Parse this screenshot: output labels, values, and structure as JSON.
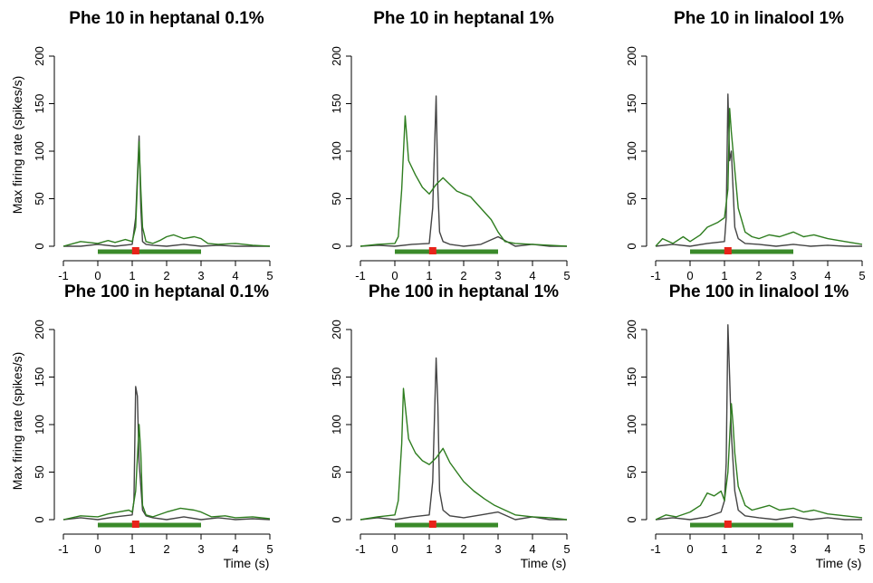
{
  "figure": {
    "ylabel": "Max firing rate (spikes/s)",
    "xlabel": "Time (s)"
  },
  "colors": {
    "green": "#2e7d1f",
    "dark": "#444444",
    "stim_bar": "#3a8a2a",
    "marker": "#e8231a"
  },
  "chart_data": [
    {
      "type": "line",
      "title": "Phe 10 in heptanal 0.1%",
      "xlim": [
        -1,
        5
      ],
      "ylim": [
        0,
        200
      ],
      "xticks": [
        "-1",
        "0",
        "1",
        "2",
        "3",
        "4",
        "5"
      ],
      "yticks": [
        "0",
        "50",
        "100",
        "150",
        "200"
      ],
      "stimulus": [
        0,
        3
      ],
      "marker_x": 1.1,
      "series": [
        {
          "name": "dark",
          "x": [
            -1,
            -0.5,
            0,
            0.5,
            1.0,
            1.1,
            1.2,
            1.25,
            1.3,
            1.4,
            1.6,
            2,
            2.5,
            3,
            3.5,
            4,
            4.5,
            5
          ],
          "y": [
            0,
            0,
            2,
            0,
            2,
            30,
            116,
            40,
            5,
            2,
            1,
            0,
            2,
            0,
            1,
            0,
            0,
            0
          ]
        },
        {
          "name": "green",
          "x": [
            -1,
            -0.8,
            -0.5,
            0,
            0.3,
            0.5,
            0.8,
            1.0,
            1.1,
            1.2,
            1.25,
            1.3,
            1.4,
            1.6,
            1.8,
            2.0,
            2.2,
            2.5,
            2.8,
            3.0,
            3.2,
            3.5,
            4,
            4.5,
            5
          ],
          "y": [
            0,
            2,
            5,
            3,
            6,
            4,
            7,
            5,
            20,
            110,
            60,
            20,
            5,
            3,
            6,
            10,
            12,
            8,
            10,
            8,
            3,
            2,
            3,
            1,
            0
          ]
        }
      ]
    },
    {
      "type": "line",
      "title": "Phe 10 in heptanal 1%",
      "xlim": [
        -1,
        5
      ],
      "ylim": [
        0,
        200
      ],
      "xticks": [
        "-1",
        "0",
        "1",
        "2",
        "3",
        "4",
        "5"
      ],
      "yticks": [
        "0",
        "50",
        "100",
        "150",
        "200"
      ],
      "stimulus": [
        0,
        3
      ],
      "marker_x": 1.1,
      "series": [
        {
          "name": "dark",
          "x": [
            -1,
            -0.5,
            0,
            0.5,
            1.0,
            1.1,
            1.2,
            1.25,
            1.3,
            1.4,
            1.6,
            2,
            2.5,
            3,
            3.5,
            4,
            4.5,
            5
          ],
          "y": [
            0,
            1,
            0,
            2,
            3,
            40,
            158,
            60,
            15,
            5,
            2,
            0,
            2,
            10,
            0,
            2,
            0,
            0
          ]
        },
        {
          "name": "green",
          "x": [
            -1,
            -0.5,
            0,
            0.1,
            0.2,
            0.3,
            0.4,
            0.6,
            0.8,
            1.0,
            1.2,
            1.4,
            1.6,
            1.8,
            2.0,
            2.2,
            2.5,
            2.8,
            3.0,
            3.2,
            3.5,
            4,
            4.5,
            5
          ],
          "y": [
            0,
            2,
            3,
            10,
            60,
            137,
            90,
            75,
            62,
            55,
            65,
            72,
            65,
            58,
            55,
            52,
            40,
            28,
            15,
            5,
            3,
            2,
            1,
            0
          ]
        }
      ]
    },
    {
      "type": "line",
      "title": "Phe 10 in linalool 1%",
      "xlim": [
        -1,
        5
      ],
      "ylim": [
        0,
        200
      ],
      "xticks": [
        "-1",
        "0",
        "1",
        "2",
        "3",
        "4",
        "5"
      ],
      "yticks": [
        "0",
        "50",
        "100",
        "150",
        "200"
      ],
      "stimulus": [
        0,
        3
      ],
      "marker_x": 1.1,
      "series": [
        {
          "name": "dark",
          "x": [
            -1,
            -0.5,
            0,
            0.5,
            1.0,
            1.05,
            1.1,
            1.15,
            1.2,
            1.25,
            1.3,
            1.4,
            1.6,
            2,
            2.5,
            3,
            3.5,
            4,
            4.5,
            5
          ],
          "y": [
            0,
            2,
            0,
            3,
            5,
            30,
            160,
            90,
            100,
            60,
            20,
            8,
            3,
            2,
            0,
            2,
            0,
            1,
            0,
            0
          ]
        },
        {
          "name": "green",
          "x": [
            -1,
            -0.8,
            -0.5,
            -0.2,
            0,
            0.3,
            0.5,
            0.8,
            1.0,
            1.1,
            1.15,
            1.2,
            1.3,
            1.4,
            1.6,
            1.8,
            2.0,
            2.3,
            2.6,
            3.0,
            3.3,
            3.6,
            4,
            4.5,
            5
          ],
          "y": [
            0,
            8,
            3,
            10,
            5,
            12,
            20,
            25,
            30,
            60,
            145,
            120,
            80,
            40,
            15,
            10,
            8,
            12,
            10,
            15,
            10,
            12,
            8,
            5,
            2
          ]
        }
      ]
    },
    {
      "type": "line",
      "title": "Phe 100 in heptanal 0.1%",
      "xlim": [
        -1,
        5
      ],
      "ylim": [
        0,
        200
      ],
      "xticks": [
        "-1",
        "0",
        "1",
        "2",
        "3",
        "4",
        "5"
      ],
      "yticks": [
        "0",
        "50",
        "100",
        "150",
        "200"
      ],
      "stimulus": [
        0,
        3
      ],
      "marker_x": 1.1,
      "series": [
        {
          "name": "dark",
          "x": [
            -1,
            -0.5,
            0,
            0.5,
            1.0,
            1.05,
            1.1,
            1.15,
            1.2,
            1.3,
            1.4,
            1.6,
            2,
            2.5,
            3,
            3.5,
            4,
            4.5,
            5
          ],
          "y": [
            0,
            2,
            0,
            3,
            5,
            20,
            140,
            130,
            60,
            10,
            4,
            2,
            0,
            3,
            0,
            2,
            0,
            1,
            0
          ]
        },
        {
          "name": "green",
          "x": [
            -1,
            -0.5,
            0,
            0.3,
            0.6,
            0.9,
            1.0,
            1.1,
            1.2,
            1.25,
            1.3,
            1.4,
            1.6,
            2.0,
            2.4,
            2.8,
            3.0,
            3.3,
            3.7,
            4,
            4.5,
            5
          ],
          "y": [
            0,
            4,
            3,
            6,
            8,
            10,
            8,
            30,
            100,
            70,
            15,
            5,
            3,
            8,
            12,
            10,
            8,
            3,
            4,
            2,
            3,
            1
          ]
        }
      ]
    },
    {
      "type": "line",
      "title": "Phe 100 in heptanal 1%",
      "xlim": [
        -1,
        5
      ],
      "ylim": [
        0,
        200
      ],
      "xticks": [
        "-1",
        "0",
        "1",
        "2",
        "3",
        "4",
        "5"
      ],
      "yticks": [
        "0",
        "50",
        "100",
        "150",
        "200"
      ],
      "stimulus": [
        0,
        3
      ],
      "marker_x": 1.1,
      "series": [
        {
          "name": "dark",
          "x": [
            -1,
            -0.5,
            0,
            0.5,
            1.0,
            1.1,
            1.2,
            1.25,
            1.3,
            1.4,
            1.6,
            2,
            2.5,
            3,
            3.5,
            4,
            4.5,
            5
          ],
          "y": [
            0,
            2,
            0,
            3,
            5,
            40,
            170,
            120,
            30,
            10,
            4,
            2,
            5,
            8,
            0,
            3,
            0,
            0
          ]
        },
        {
          "name": "green",
          "x": [
            -1,
            -0.5,
            0,
            0.1,
            0.2,
            0.25,
            0.3,
            0.4,
            0.6,
            0.8,
            1.0,
            1.2,
            1.4,
            1.6,
            1.8,
            2.0,
            2.3,
            2.6,
            2.9,
            3.2,
            3.5,
            4,
            4.5,
            5
          ],
          "y": [
            0,
            3,
            5,
            20,
            80,
            138,
            120,
            85,
            70,
            62,
            58,
            65,
            75,
            60,
            50,
            40,
            30,
            22,
            15,
            10,
            5,
            3,
            2,
            0
          ]
        }
      ]
    },
    {
      "type": "line",
      "title": "Phe 100 in linalool 1%",
      "xlim": [
        -1,
        5
      ],
      "ylim": [
        0,
        200
      ],
      "xticks": [
        "-1",
        "0",
        "1",
        "2",
        "3",
        "4",
        "5"
      ],
      "yticks": [
        "0",
        "50",
        "100",
        "150",
        "200"
      ],
      "stimulus": [
        0,
        3
      ],
      "marker_x": 1.1,
      "series": [
        {
          "name": "dark",
          "x": [
            -1,
            -0.5,
            0,
            0.5,
            0.9,
            1.0,
            1.05,
            1.1,
            1.15,
            1.2,
            1.3,
            1.4,
            1.6,
            2,
            2.5,
            3,
            3.5,
            4,
            4.5,
            5
          ],
          "y": [
            0,
            2,
            0,
            3,
            8,
            20,
            60,
            205,
            150,
            90,
            30,
            10,
            4,
            2,
            0,
            3,
            0,
            2,
            0,
            0
          ]
        },
        {
          "name": "green",
          "x": [
            -1,
            -0.7,
            -0.4,
            0,
            0.3,
            0.5,
            0.7,
            0.9,
            1.0,
            1.1,
            1.2,
            1.25,
            1.3,
            1.4,
            1.6,
            1.8,
            2.0,
            2.3,
            2.6,
            3.0,
            3.3,
            3.6,
            4,
            4.5,
            5
          ],
          "y": [
            0,
            5,
            3,
            8,
            15,
            28,
            25,
            30,
            20,
            50,
            122,
            100,
            70,
            35,
            15,
            10,
            12,
            15,
            10,
            12,
            8,
            10,
            6,
            4,
            2
          ]
        }
      ]
    }
  ]
}
